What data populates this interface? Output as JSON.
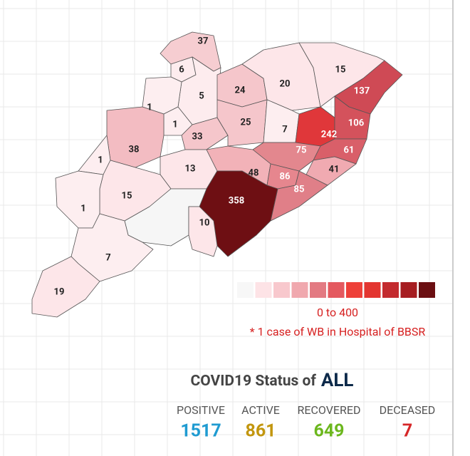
{
  "map": {
    "regions": [
      {
        "value": 37,
        "color": "#f6cdd1",
        "text_color": "#222"
      },
      {
        "value": 6,
        "color": "#fdecee",
        "text_color": "#222"
      },
      {
        "value": 5,
        "color": "#fdecee",
        "text_color": "#222"
      },
      {
        "value": 24,
        "color": "#f5c6cb",
        "text_color": "#222"
      },
      {
        "value": 20,
        "color": "#fde6e9",
        "text_color": "#222"
      },
      {
        "value": 15,
        "color": "#fde6e9",
        "text_color": "#222"
      },
      {
        "value": 137,
        "color": "#cf4a55",
        "text_color": "#fff"
      },
      {
        "value": 1,
        "color": "#fdeef0",
        "text_color": "#222"
      },
      {
        "value": 1,
        "color": "#fdeef0",
        "text_color": "#222"
      },
      {
        "value": 33,
        "color": "#f5c6cb",
        "text_color": "#222"
      },
      {
        "value": 25,
        "color": "#f5c6cb",
        "text_color": "#222"
      },
      {
        "value": 7,
        "color": "#fdeef0",
        "text_color": "#222"
      },
      {
        "value": 242,
        "color": "#e0373a",
        "text_color": "#fff"
      },
      {
        "value": 106,
        "color": "#d4525c",
        "text_color": "#fff"
      },
      {
        "value": 38,
        "color": "#f3bcc2",
        "text_color": "#222"
      },
      {
        "value": 75,
        "color": "#e3878e",
        "text_color": "#fff"
      },
      {
        "value": 61,
        "color": "#d95f69",
        "text_color": "#fff"
      },
      {
        "value": 1,
        "color": "#fdeef0",
        "text_color": "#222"
      },
      {
        "value": 13,
        "color": "#fde6e9",
        "text_color": "#222"
      },
      {
        "value": 48,
        "color": "#f2b2b8",
        "text_color": "#222"
      },
      {
        "value": 86,
        "color": "#e6868e",
        "text_color": "#fff"
      },
      {
        "value": 41,
        "color": "#f0aab1",
        "text_color": "#222"
      },
      {
        "value": 85,
        "color": "#e07f88",
        "text_color": "#fff"
      },
      {
        "value": 15,
        "color": "#fde6e9",
        "text_color": "#222"
      },
      {
        "value": 358,
        "color": "#6e0f13",
        "text_color": "#fff"
      },
      {
        "value": 1,
        "color": "#fdeef0",
        "text_color": "#222"
      },
      {
        "value": null,
        "color": "#f6f6f6",
        "text_color": "#222"
      },
      {
        "value": 10,
        "color": "#fde6e9",
        "text_color": "#222"
      },
      {
        "value": 7,
        "color": "#fdeef0",
        "text_color": "#222"
      },
      {
        "value": 19,
        "color": "#fde6e9",
        "text_color": "#222"
      }
    ],
    "legend": {
      "colors": [
        "#f7f7f7",
        "#fde3e6",
        "#f8c8cd",
        "#f0a8ae",
        "#e37a82",
        "#e4595f",
        "#ee4039",
        "#e33530",
        "#c32a2e",
        "#a61d21",
        "#6b0f12"
      ],
      "range": "0 to 400",
      "note": "* 1 case of WB in Hospital of BBSR"
    }
  },
  "status": {
    "title": "COVID19 Status of",
    "scope": "ALL",
    "stats": [
      {
        "label": "POSITIVE",
        "value": 1517,
        "color": "#1f9bd1"
      },
      {
        "label": "ACTIVE",
        "value": 861,
        "color": "#c2960e"
      },
      {
        "label": "RECOVERED",
        "value": 649,
        "color": "#6cb71e"
      },
      {
        "label": "DECEASED",
        "value": 7,
        "color": "#d62728"
      }
    ]
  }
}
